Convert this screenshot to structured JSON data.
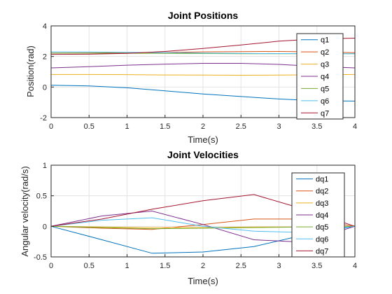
{
  "chart_data": [
    {
      "type": "line",
      "title": "Joint Positions",
      "xlabel": "Time(s)",
      "ylabel": "Position(rad)",
      "xlim": [
        0,
        4
      ],
      "ylim": [
        -2,
        4
      ],
      "xticks": [
        "0",
        "0.5",
        "1",
        "1.5",
        "2",
        "2.5",
        "3",
        "3.5",
        "4"
      ],
      "yticks": [
        "-2",
        "0",
        "2",
        "4"
      ],
      "grid": true,
      "legend_position": "right",
      "x": [
        0,
        0.5,
        1,
        1.5,
        2,
        2.5,
        3,
        3.5,
        4
      ],
      "series": [
        {
          "name": "q1",
          "color": "#0072BD",
          "values": [
            0.12,
            0.07,
            -0.05,
            -0.25,
            -0.45,
            -0.62,
            -0.78,
            -0.9,
            -0.92
          ]
        },
        {
          "name": "q2",
          "color": "#D95319",
          "values": [
            2.22,
            2.23,
            2.24,
            2.26,
            2.3,
            2.32,
            2.33,
            2.3,
            2.25
          ]
        },
        {
          "name": "q3",
          "color": "#EDB120",
          "values": [
            0.82,
            0.82,
            0.81,
            0.79,
            0.78,
            0.77,
            0.78,
            0.8,
            0.82
          ]
        },
        {
          "name": "q4",
          "color": "#7E2F8E",
          "values": [
            1.25,
            1.33,
            1.43,
            1.5,
            1.55,
            1.55,
            1.48,
            1.35,
            1.25
          ]
        },
        {
          "name": "q5",
          "color": "#77AC30",
          "values": [
            2.22,
            2.22,
            2.21,
            2.2,
            2.19,
            2.18,
            2.18,
            2.18,
            2.18
          ]
        },
        {
          "name": "q6",
          "color": "#4DBEEE",
          "values": [
            2.3,
            2.29,
            2.27,
            2.25,
            2.22,
            2.2,
            2.19,
            2.18,
            2.18
          ]
        },
        {
          "name": "q7",
          "color": "#A2142F",
          "values": [
            2.14,
            2.15,
            2.2,
            2.33,
            2.52,
            2.75,
            3.0,
            3.15,
            3.2
          ]
        }
      ]
    },
    {
      "type": "line",
      "title": "Joint Velocities",
      "xlabel": "Time(s)",
      "ylabel": "Angular velocity(rad/s)",
      "xlim": [
        0,
        4
      ],
      "ylim": [
        -0.5,
        1
      ],
      "xticks": [
        "0",
        "0.5",
        "1",
        "1.5",
        "2",
        "2.5",
        "3",
        "3.5",
        "4"
      ],
      "yticks": [
        "-0.5",
        "0",
        "0.5",
        "1"
      ],
      "grid": true,
      "legend_position": "right",
      "x": [
        0,
        0.67,
        1.33,
        2.0,
        2.67,
        3.33,
        4.0
      ],
      "series": [
        {
          "name": "dq1",
          "color": "#0072BD",
          "values": [
            0,
            -0.22,
            -0.44,
            -0.42,
            -0.33,
            -0.14,
            0
          ]
        },
        {
          "name": "dq2",
          "color": "#D95319",
          "values": [
            0,
            -0.03,
            -0.05,
            0.03,
            0.12,
            0.12,
            0
          ]
        },
        {
          "name": "dq3",
          "color": "#EDB120",
          "values": [
            0,
            -0.01,
            -0.02,
            -0.02,
            -0.01,
            -0.01,
            0
          ]
        },
        {
          "name": "dq4",
          "color": "#7E2F8E",
          "values": [
            0,
            0.17,
            0.25,
            0.03,
            -0.22,
            -0.26,
            0
          ]
        },
        {
          "name": "dq5",
          "color": "#77AC30",
          "values": [
            0,
            -0.02,
            -0.04,
            -0.03,
            -0.02,
            -0.01,
            0
          ]
        },
        {
          "name": "dq6",
          "color": "#4DBEEE",
          "values": [
            0,
            0.1,
            0.14,
            0.0,
            -0.08,
            -0.1,
            0
          ]
        },
        {
          "name": "dq7",
          "color": "#A2142F",
          "values": [
            0,
            0.12,
            0.28,
            0.42,
            0.52,
            0.28,
            0
          ]
        }
      ]
    }
  ]
}
